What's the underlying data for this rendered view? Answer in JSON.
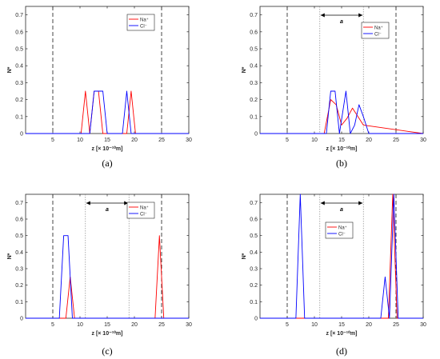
{
  "chart_data": [
    {
      "type": "line",
      "panel_label": "(a)",
      "xlabel": "z [× 10⁻¹⁰m]",
      "ylabel": "N*",
      "xlim": [
        0,
        30
      ],
      "ylim": [
        0,
        0.75
      ],
      "xticks": [
        5,
        10,
        15,
        20,
        25,
        30
      ],
      "yticks": [
        0,
        0.1,
        0.2,
        0.3,
        0.4,
        0.5,
        0.6,
        0.7
      ],
      "legend": {
        "position": "top-right",
        "entries": [
          "Na⁺",
          "Cl⁻"
        ]
      },
      "walls": [
        5,
        25
      ],
      "series": [
        {
          "name": "Na⁺",
          "color": "#ff0000",
          "x": [
            0,
            10.2,
            11,
            11.8,
            12.6,
            13.4,
            14.2,
            18.6,
            19.4,
            20.2,
            30
          ],
          "y": [
            0,
            0,
            0.25,
            0,
            0.25,
            0.25,
            0,
            0,
            0.25,
            0,
            0
          ]
        },
        {
          "name": "Cl⁻",
          "color": "#0000ff",
          "x": [
            0,
            11.8,
            12.6,
            13.4,
            14.2,
            15,
            17.8,
            18.6,
            19.4,
            30
          ],
          "y": [
            0,
            0,
            0.25,
            0.25,
            0.25,
            0,
            0,
            0.25,
            0,
            0
          ]
        }
      ]
    },
    {
      "type": "line",
      "panel_label": "(b)",
      "xlabel": "z [× 10⁻¹⁰m]",
      "ylabel": "N*",
      "xlim": [
        0,
        30
      ],
      "ylim": [
        0,
        0.75
      ],
      "xticks": [
        5,
        10,
        15,
        20,
        25,
        30
      ],
      "yticks": [
        0,
        0.1,
        0.2,
        0.3,
        0.4,
        0.5,
        0.6,
        0.7
      ],
      "legend": {
        "position": "top-right",
        "entries": [
          "Na⁺",
          "Cl⁻"
        ]
      },
      "walls": [
        5,
        25
      ],
      "region": {
        "x": [
          11,
          19
        ],
        "label": "a"
      },
      "series": [
        {
          "name": "Na⁺",
          "color": "#ff0000",
          "x": [
            0,
            11.8,
            13,
            14,
            15,
            16,
            17,
            18,
            19,
            30
          ],
          "y": [
            0,
            0,
            0.2,
            0.17,
            0.05,
            0.09,
            0.15,
            0.1,
            0.05,
            0
          ]
        },
        {
          "name": "Cl⁻",
          "color": "#0000ff",
          "x": [
            0,
            12.2,
            13,
            13.8,
            14.6,
            15.8,
            16.6,
            17.4,
            18.2,
            19,
            20,
            30
          ],
          "y": [
            0,
            0,
            0.25,
            0.25,
            0,
            0.25,
            0,
            0.05,
            0.17,
            0.1,
            0,
            0
          ]
        }
      ]
    },
    {
      "type": "line",
      "panel_label": "(c)",
      "xlabel": "z [× 10⁻¹⁰m]",
      "ylabel": "N*",
      "xlim": [
        0,
        30
      ],
      "ylim": [
        0,
        0.75
      ],
      "xticks": [
        5,
        10,
        15,
        20,
        25,
        30
      ],
      "yticks": [
        0,
        0.1,
        0.2,
        0.3,
        0.4,
        0.5,
        0.6,
        0.7
      ],
      "legend": {
        "position": "top-right",
        "entries": [
          "Na⁺",
          "Cl⁻"
        ]
      },
      "walls": [
        5,
        25
      ],
      "region": {
        "x": [
          11,
          19
        ],
        "label": "a"
      },
      "series": [
        {
          "name": "Na⁺",
          "color": "#ff0000",
          "x": [
            0,
            7.4,
            8.2,
            9,
            23.8,
            24.6,
            25.4,
            30
          ],
          "y": [
            0,
            0,
            0.25,
            0,
            0,
            0.5,
            0,
            0
          ]
        },
        {
          "name": "Cl⁻",
          "color": "#0000ff",
          "x": [
            0,
            6.2,
            7,
            7.8,
            8.6,
            30
          ],
          "y": [
            0,
            0,
            0.5,
            0.5,
            0,
            0
          ]
        }
      ]
    },
    {
      "type": "line",
      "panel_label": "(d)",
      "xlabel": "z [× 10⁻¹⁰m]",
      "ylabel": "N*",
      "xlim": [
        0,
        30
      ],
      "ylim": [
        0,
        0.75
      ],
      "xticks": [
        5,
        10,
        15,
        20,
        25,
        30
      ],
      "yticks": [
        0,
        0.1,
        0.2,
        0.3,
        0.4,
        0.5,
        0.6,
        0.7
      ],
      "legend": {
        "position": "center-right",
        "entries": [
          "Na⁺",
          "Cl⁻"
        ]
      },
      "walls": [
        5,
        25
      ],
      "region": {
        "x": [
          11,
          19
        ],
        "label": "a"
      },
      "series": [
        {
          "name": "Na⁺",
          "color": "#ff0000",
          "x": [
            0,
            23.6,
            24.4,
            25.2,
            30
          ],
          "y": [
            0,
            0,
            0.75,
            0,
            0
          ]
        },
        {
          "name": "Cl⁻",
          "color": "#0000ff",
          "x": [
            0,
            6.6,
            7.4,
            8.2,
            22.2,
            23,
            23.8,
            24.6,
            25.4,
            30
          ],
          "y": [
            0,
            0,
            0.75,
            0,
            0,
            0.25,
            0,
            0.75,
            0,
            0
          ]
        }
      ]
    }
  ]
}
